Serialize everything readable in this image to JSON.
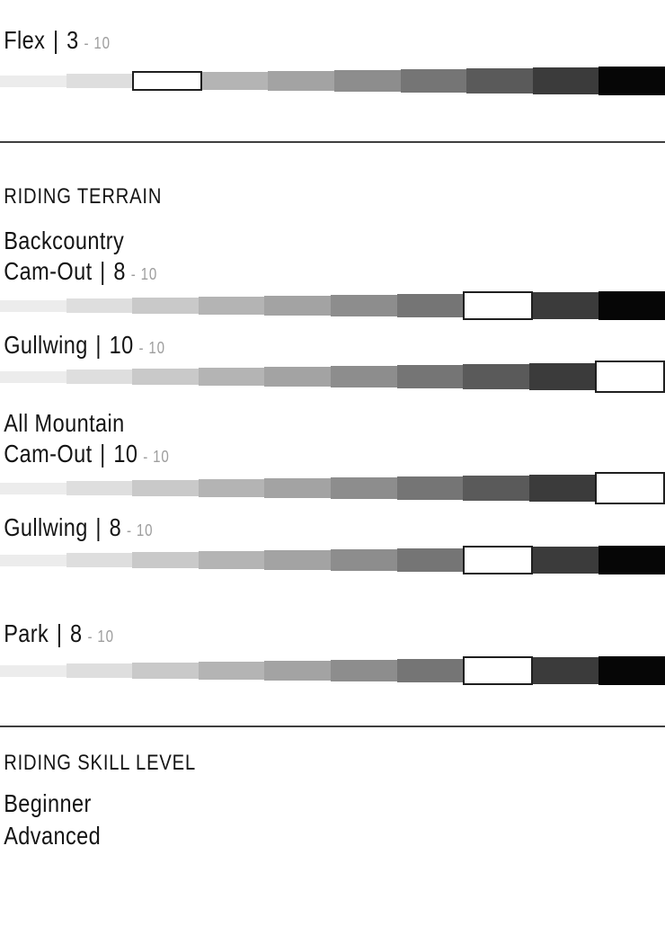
{
  "scale": {
    "max": 10,
    "segments": 10,
    "segment_colors": [
      "#ececec",
      "#dedede",
      "#c9c9c9",
      "#b4b4b4",
      "#a3a3a3",
      "#8d8d8d",
      "#757575",
      "#5a5a5a",
      "#3b3b3b",
      "#060606"
    ],
    "highlight_color": "#ffffff",
    "highlight_border": "#1f1f1f"
  },
  "flex": {
    "label": "Flex",
    "divider": "|",
    "value": "3",
    "max_suffix": "- 10",
    "selected": 3
  },
  "riding_terrain": {
    "heading": "RIDING TERRAIN",
    "backcountry": {
      "name": "Backcountry",
      "cam_out": {
        "label": "Cam-Out",
        "divider": "|",
        "value": "8",
        "max_suffix": "- 10",
        "selected": 8
      },
      "gullwing": {
        "label": "Gullwing",
        "divider": "|",
        "value": "10",
        "max_suffix": "- 10",
        "selected": 10
      }
    },
    "all_mountain": {
      "name": "All Mountain",
      "cam_out": {
        "label": "Cam-Out",
        "divider": "|",
        "value": "10",
        "max_suffix": "- 10",
        "selected": 10
      },
      "gullwing": {
        "label": "Gullwing",
        "divider": "|",
        "value": "8",
        "max_suffix": "- 10",
        "selected": 8
      }
    },
    "park": {
      "label": "Park",
      "divider": "|",
      "value": "8",
      "max_suffix": "- 10",
      "selected": 8
    }
  },
  "riding_skill": {
    "heading": "RIDING SKILL LEVEL",
    "levels": [
      "Beginner",
      "Advanced"
    ]
  }
}
